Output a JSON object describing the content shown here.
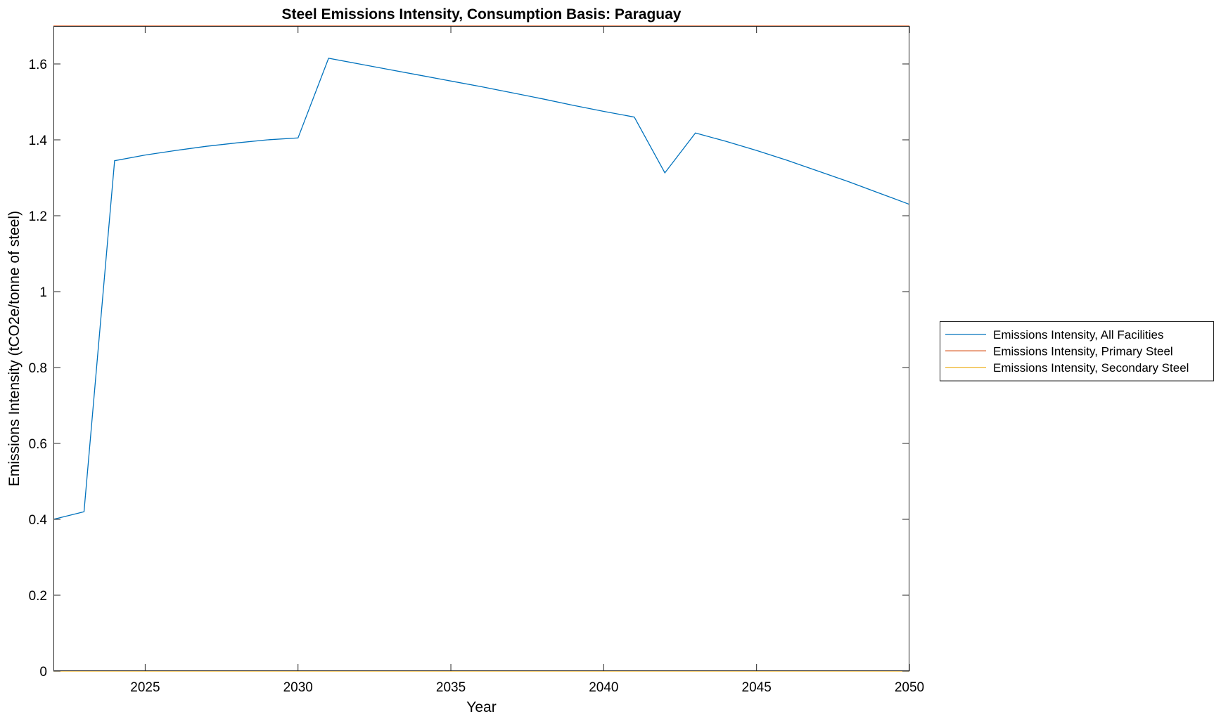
{
  "chart_data": {
    "type": "line",
    "title": "Steel Emissions Intensity, Consumption Basis: Paraguay",
    "xlabel": "Year",
    "ylabel": "Emissions Intensity (tCO2e/tonne of steel)",
    "xlim": [
      2022,
      2050
    ],
    "ylim": [
      0,
      1.7
    ],
    "xticks": [
      2025,
      2030,
      2035,
      2040,
      2045,
      2050
    ],
    "yticks": [
      0,
      0.2,
      0.4,
      0.6,
      0.8,
      1,
      1.2,
      1.4,
      1.6
    ],
    "xtick_labels": [
      "2025",
      "2030",
      "2035",
      "2040",
      "2045",
      "2050"
    ],
    "ytick_labels": [
      "0",
      "0.2",
      "0.4",
      "0.6",
      "0.8",
      "1",
      "1.2",
      "1.4",
      "1.6"
    ],
    "grid": false,
    "legend_position": "outside-right",
    "series": [
      {
        "name": "Emissions Intensity, All Facilities",
        "color": "#0072BD",
        "x": [
          2022,
          2023,
          2024,
          2025,
          2026,
          2027,
          2028,
          2029,
          2030,
          2031,
          2032,
          2033,
          2034,
          2035,
          2036,
          2037,
          2038,
          2039,
          2040,
          2041,
          2042,
          2043,
          2044,
          2045,
          2046,
          2047,
          2048,
          2049,
          2050
        ],
        "y": [
          0.4,
          0.42,
          1.345,
          1.36,
          1.372,
          1.383,
          1.392,
          1.4,
          1.405,
          1.615,
          1.6,
          1.585,
          1.57,
          1.555,
          1.54,
          1.524,
          1.508,
          1.491,
          1.475,
          1.46,
          1.313,
          1.418,
          1.396,
          1.372,
          1.346,
          1.318,
          1.29,
          1.26,
          1.23
        ]
      },
      {
        "name": "Emissions Intensity, Primary Steel",
        "color": "#D95319",
        "x": [
          2022,
          2050
        ],
        "y": [
          1.7,
          1.7
        ]
      },
      {
        "name": "Emissions Intensity, Secondary Steel",
        "color": "#EDB120",
        "x": [
          2022,
          2050
        ],
        "y": [
          0,
          0
        ]
      }
    ]
  }
}
